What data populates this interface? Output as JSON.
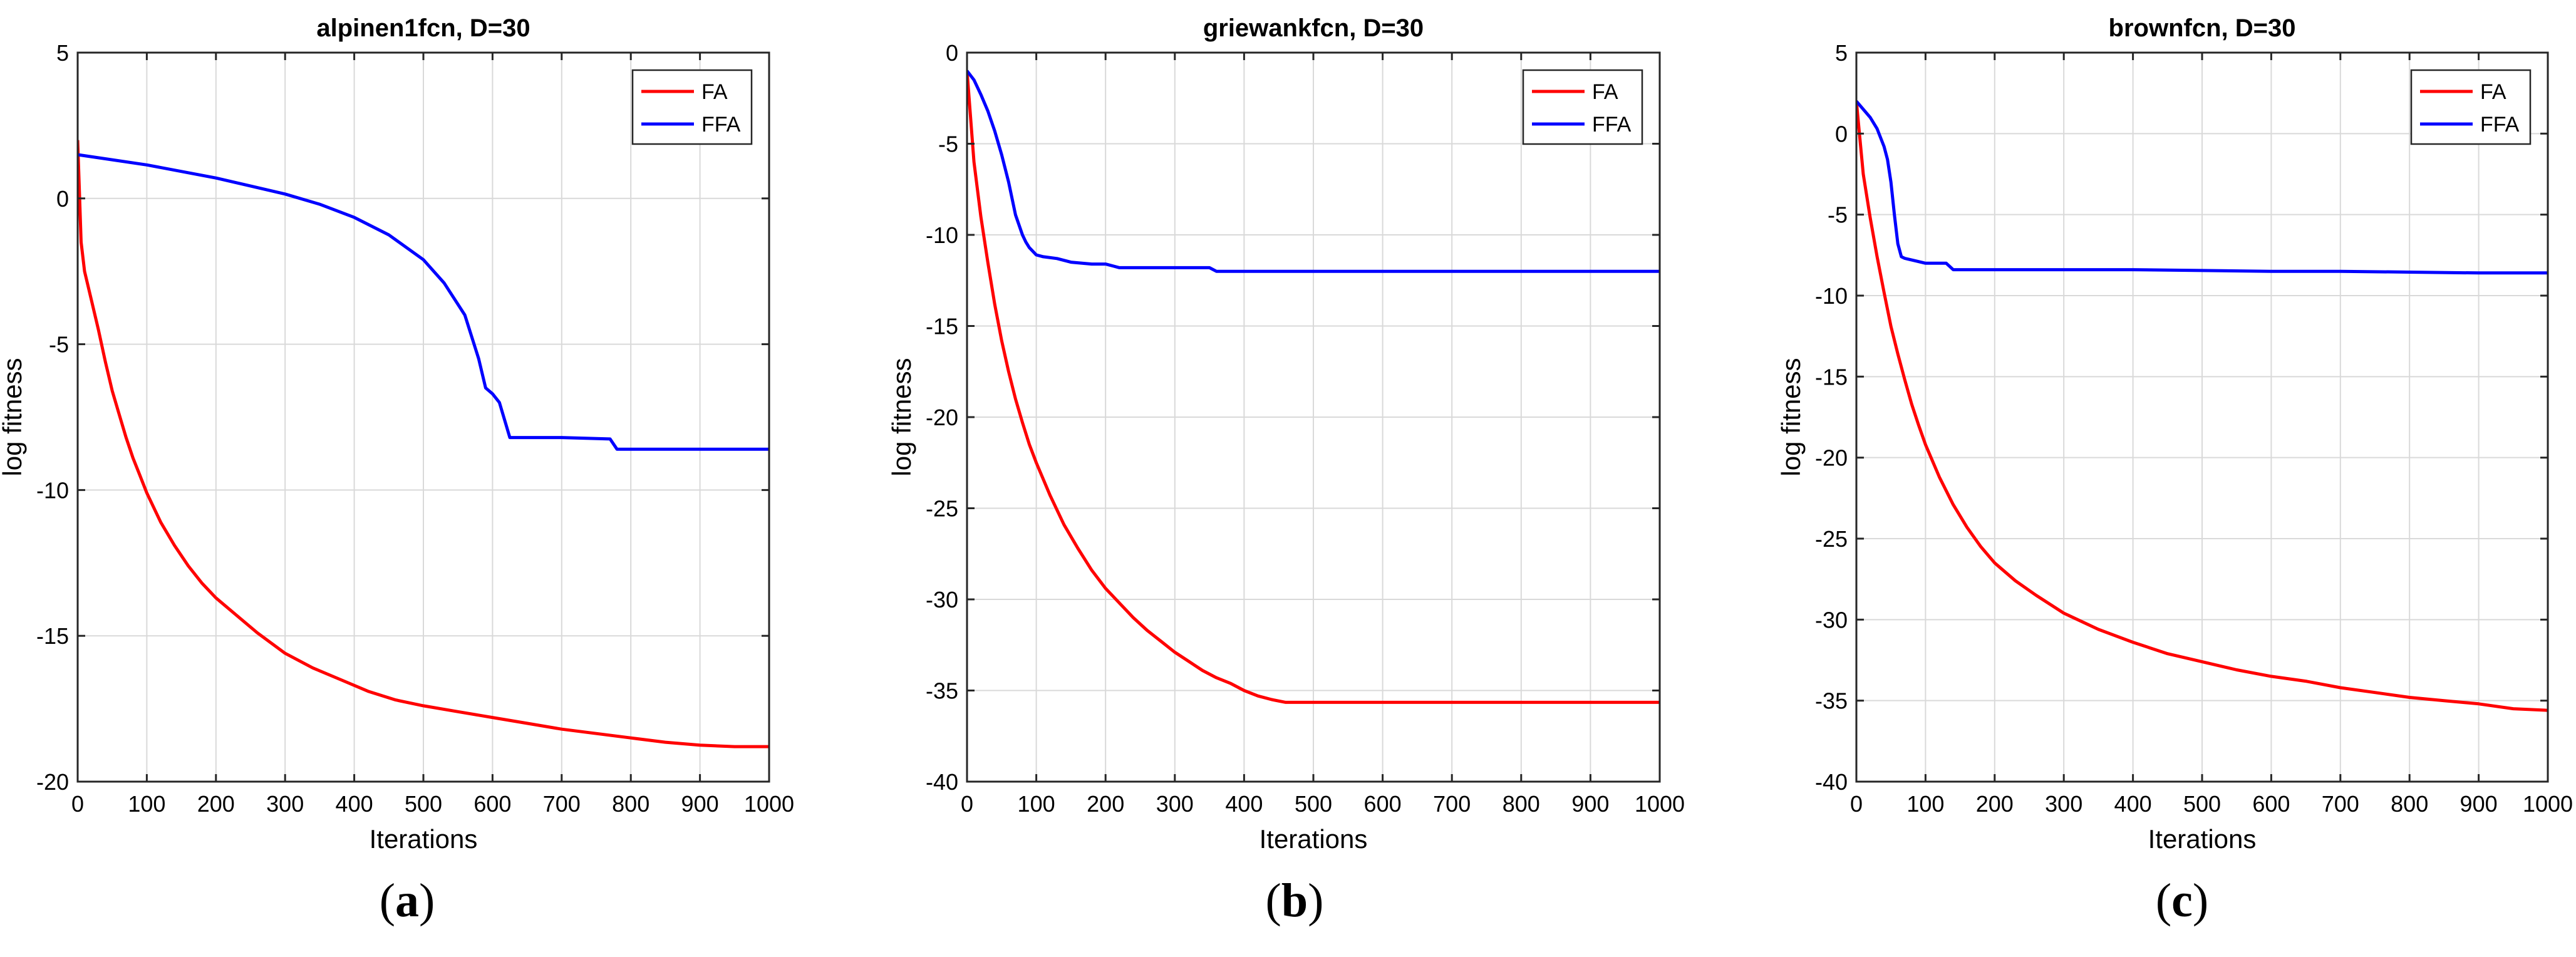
{
  "colors": {
    "fa": "#ff0000",
    "ffa": "#0000ff",
    "grid": "#d9d9d9",
    "axis": "#262626"
  },
  "chart_data": [
    {
      "type": "line",
      "title": "alpinen1fcn, D=30",
      "xlabel": "Iterations",
      "ylabel": "log fitness",
      "xlim": [
        0,
        1000
      ],
      "ylim": [
        -20,
        5
      ],
      "xticks": [
        "0",
        "100",
        "200",
        "300",
        "400",
        "500",
        "600",
        "700",
        "800",
        "900",
        "1000"
      ],
      "yticks": [
        "5",
        "0",
        "-5",
        "-10",
        "-15",
        "-20"
      ],
      "xtick_values": [
        0,
        100,
        200,
        300,
        400,
        500,
        600,
        700,
        800,
        900,
        1000
      ],
      "ytick_values": [
        5,
        0,
        -5,
        -10,
        -15,
        -20
      ],
      "grid": true,
      "legend_position": "top-right",
      "caption_letter": "a",
      "series": [
        {
          "name": "FA",
          "color": "#ff0000",
          "x": [
            0,
            5,
            10,
            20,
            30,
            40,
            50,
            60,
            70,
            80,
            90,
            100,
            120,
            140,
            160,
            180,
            200,
            230,
            260,
            300,
            340,
            380,
            420,
            460,
            500,
            550,
            600,
            650,
            700,
            750,
            800,
            850,
            900,
            950,
            1000
          ],
          "y": [
            2,
            -1.5,
            -2.5,
            -3.5,
            -4.5,
            -5.6,
            -6.6,
            -7.4,
            -8.2,
            -8.9,
            -9.5,
            -10.1,
            -11.1,
            -11.9,
            -12.6,
            -13.2,
            -13.7,
            -14.3,
            -14.9,
            -15.6,
            -16.1,
            -16.5,
            -16.9,
            -17.2,
            -17.4,
            -17.6,
            -17.8,
            -18.0,
            -18.2,
            -18.35,
            -18.5,
            -18.65,
            -18.75,
            -18.8,
            -18.8
          ]
        },
        {
          "name": "FFA",
          "color": "#0000ff",
          "x": [
            0,
            100,
            200,
            300,
            350,
            400,
            450,
            500,
            530,
            560,
            580,
            590,
            600,
            610,
            620,
            625,
            630,
            700,
            770,
            780,
            790,
            850,
            900,
            1000
          ],
          "y": [
            1.5,
            1.15,
            0.7,
            0.15,
            -0.2,
            -0.65,
            -1.25,
            -2.1,
            -2.9,
            -4.0,
            -5.5,
            -6.5,
            -6.7,
            -7.0,
            -7.8,
            -8.2,
            -8.2,
            -8.2,
            -8.25,
            -8.6,
            -8.6,
            -8.6,
            -8.6,
            -8.6
          ]
        }
      ]
    },
    {
      "type": "line",
      "title": "griewankfcn, D=30",
      "xlabel": "Iterations",
      "ylabel": "log fitness",
      "xlim": [
        0,
        1000
      ],
      "ylim": [
        -40,
        0
      ],
      "xticks": [
        "0",
        "100",
        "200",
        "300",
        "400",
        "500",
        "600",
        "700",
        "800",
        "900",
        "1000"
      ],
      "yticks": [
        "0",
        "-5",
        "-10",
        "-15",
        "-20",
        "-25",
        "-30",
        "-35",
        "-40"
      ],
      "xtick_values": [
        0,
        100,
        200,
        300,
        400,
        500,
        600,
        700,
        800,
        900,
        1000
      ],
      "ytick_values": [
        0,
        -5,
        -10,
        -15,
        -20,
        -25,
        -30,
        -35,
        -40
      ],
      "grid": true,
      "legend_position": "top-right",
      "caption_letter": "b",
      "series": [
        {
          "name": "FA",
          "color": "#ff0000",
          "x": [
            0,
            10,
            20,
            30,
            40,
            50,
            60,
            70,
            80,
            90,
            100,
            120,
            140,
            160,
            180,
            200,
            220,
            240,
            260,
            280,
            300,
            320,
            340,
            360,
            380,
            400,
            420,
            440,
            460,
            480,
            500,
            600,
            700,
            800,
            900,
            1000
          ],
          "y": [
            -1,
            -6,
            -9,
            -11.5,
            -13.8,
            -15.8,
            -17.5,
            -19,
            -20.3,
            -21.5,
            -22.5,
            -24.3,
            -25.9,
            -27.2,
            -28.4,
            -29.4,
            -30.2,
            -31,
            -31.7,
            -32.3,
            -32.9,
            -33.4,
            -33.9,
            -34.3,
            -34.6,
            -35,
            -35.3,
            -35.5,
            -35.65,
            -35.65,
            -35.65,
            -35.65,
            -35.65,
            -35.65,
            -35.65,
            -35.65
          ]
        },
        {
          "name": "FFA",
          "color": "#0000ff",
          "x": [
            0,
            10,
            20,
            30,
            40,
            50,
            60,
            70,
            80,
            85,
            90,
            100,
            110,
            130,
            150,
            180,
            200,
            220,
            250,
            300,
            350,
            360,
            400,
            500,
            600,
            700,
            800,
            900,
            1000
          ],
          "y": [
            -1,
            -1.5,
            -2.3,
            -3.2,
            -4.3,
            -5.6,
            -7.1,
            -8.9,
            -10,
            -10.4,
            -10.7,
            -11.1,
            -11.2,
            -11.3,
            -11.5,
            -11.6,
            -11.6,
            -11.8,
            -11.8,
            -11.8,
            -11.8,
            -12,
            -12,
            -12,
            -12,
            -12,
            -12,
            -12,
            -12
          ]
        }
      ]
    },
    {
      "type": "line",
      "title": "brownfcn, D=30",
      "xlabel": "Iterations",
      "ylabel": "log fitness",
      "xlim": [
        0,
        1000
      ],
      "ylim": [
        -40,
        5
      ],
      "xticks": [
        "0",
        "100",
        "200",
        "300",
        "400",
        "500",
        "600",
        "700",
        "800",
        "900",
        "1000"
      ],
      "yticks": [
        "5",
        "0",
        "-5",
        "-10",
        "-15",
        "-20",
        "-25",
        "-30",
        "-35",
        "-40"
      ],
      "xtick_values": [
        0,
        100,
        200,
        300,
        400,
        500,
        600,
        700,
        800,
        900,
        1000
      ],
      "ytick_values": [
        5,
        0,
        -5,
        -10,
        -15,
        -20,
        -25,
        -30,
        -35,
        -40
      ],
      "grid": true,
      "legend_position": "top-right",
      "caption_letter": "c",
      "series": [
        {
          "name": "FA",
          "color": "#ff0000",
          "x": [
            0,
            10,
            20,
            30,
            40,
            50,
            60,
            70,
            80,
            90,
            100,
            120,
            140,
            160,
            180,
            200,
            230,
            260,
            300,
            350,
            400,
            450,
            500,
            550,
            600,
            650,
            700,
            750,
            800,
            850,
            900,
            950,
            1000
          ],
          "y": [
            2,
            -2.5,
            -5.2,
            -7.6,
            -9.8,
            -11.9,
            -13.6,
            -15.2,
            -16.7,
            -18,
            -19.2,
            -21.2,
            -22.9,
            -24.3,
            -25.5,
            -26.5,
            -27.6,
            -28.5,
            -29.6,
            -30.6,
            -31.4,
            -32.1,
            -32.6,
            -33.1,
            -33.5,
            -33.8,
            -34.2,
            -34.5,
            -34.8,
            -35,
            -35.2,
            -35.5,
            -35.6
          ]
        },
        {
          "name": "FFA",
          "color": "#0000ff",
          "x": [
            0,
            10,
            20,
            30,
            40,
            45,
            50,
            55,
            60,
            65,
            70,
            80,
            90,
            100,
            110,
            130,
            140,
            150,
            200,
            300,
            400,
            500,
            600,
            700,
            800,
            900,
            1000
          ],
          "y": [
            2,
            1.5,
            1,
            0.3,
            -0.8,
            -1.6,
            -3,
            -5,
            -6.8,
            -7.6,
            -7.7,
            -7.8,
            -7.9,
            -8.0,
            -8.0,
            -8.0,
            -8.4,
            -8.4,
            -8.4,
            -8.4,
            -8.4,
            -8.45,
            -8.5,
            -8.5,
            -8.55,
            -8.6,
            -8.6
          ]
        }
      ]
    }
  ]
}
